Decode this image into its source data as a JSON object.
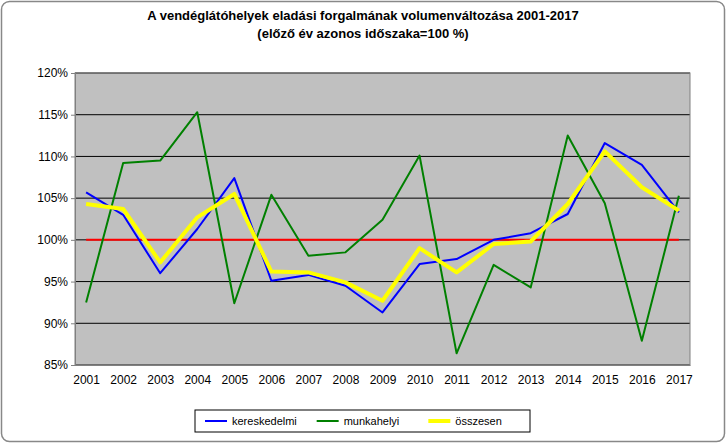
{
  "chart_data": {
    "type": "line",
    "title": "A vendéglátóhelyek eladási forgalmának volumenváltozása 2001-2017",
    "subtitle": "(előző év azonos időszaka=100 %)",
    "categories": [
      "2001",
      "2002",
      "2003",
      "2004",
      "2005",
      "2006",
      "2007",
      "2008",
      "2009",
      "2010",
      "2011",
      "2012",
      "2013",
      "2014",
      "2015",
      "2016",
      "2017"
    ],
    "series": [
      {
        "name": "kereskedelmi",
        "color": "#0000ff",
        "values": [
          105.7,
          103.0,
          96.0,
          101.3,
          107.4,
          95.1,
          95.8,
          94.5,
          91.3,
          97.1,
          97.7,
          100.0,
          100.8,
          103.1,
          111.6,
          109.0,
          103.3
        ]
      },
      {
        "name": "munkahelyi",
        "color": "#008000",
        "values": [
          92.5,
          109.2,
          109.5,
          115.3,
          92.4,
          105.4,
          98.1,
          98.5,
          102.4,
          110.1,
          86.4,
          97.0,
          94.3,
          112.5,
          104.4,
          87.9,
          105.3
        ]
      },
      {
        "name": "összesen",
        "color": "#ffff00",
        "values": [
          104.3,
          103.7,
          97.3,
          102.7,
          105.5,
          96.2,
          96.1,
          94.9,
          92.7,
          99.0,
          96.1,
          99.5,
          99.8,
          104.3,
          110.6,
          106.3,
          103.5
        ]
      }
    ],
    "baseline": 100,
    "ylim": [
      85,
      120
    ],
    "yticks": [
      {
        "value": 85,
        "label": "85%"
      },
      {
        "value": 90,
        "label": "90%"
      },
      {
        "value": 95,
        "label": "95%"
      },
      {
        "value": 100,
        "label": "100%"
      },
      {
        "value": 105,
        "label": "105%"
      },
      {
        "value": 110,
        "label": "110%"
      },
      {
        "value": 115,
        "label": "115%"
      },
      {
        "value": 120,
        "label": "120%"
      }
    ],
    "grid": true,
    "legend": "bottom"
  }
}
